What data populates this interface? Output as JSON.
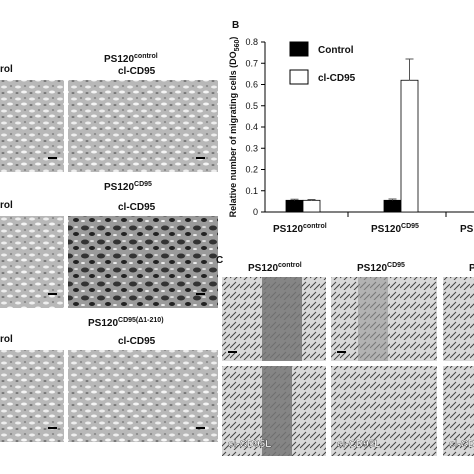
{
  "panel_a": {
    "rows": [
      {
        "left": "rol",
        "title": "PS120",
        "title_sup": "control",
        "right": "cl-CD95"
      },
      {
        "left": "rol",
        "title": "PS120",
        "title_sup": "CD95",
        "right": "cl-CD95"
      },
      {
        "left": "rol",
        "title": "PS120",
        "title_sup": "CD95(Δ1-210)",
        "right": "cl-CD95"
      }
    ]
  },
  "chart_data": {
    "type": "bar",
    "panel_label": "B",
    "ylabel": "Relative number of migrating cells (DO",
    "ylabel_sub": "560",
    "ylabel_end": ")",
    "categories": [
      "PS120",
      "PS120",
      "PS1"
    ],
    "category_sups": [
      "control",
      "CD95",
      null
    ],
    "series": [
      {
        "name": "Control",
        "color": "#000000",
        "values": [
          0.055,
          0.055,
          null
        ],
        "errors": [
          0.005,
          0.006,
          null
        ]
      },
      {
        "name": "cl-CD95",
        "color": "#ffffff",
        "values": [
          0.055,
          0.62,
          null
        ],
        "errors": [
          0.004,
          0.1,
          null
        ]
      }
    ],
    "ylim": [
      0,
      0.8
    ],
    "yticks": [
      0,
      0.1,
      0.2,
      0.3,
      0.4,
      0.5,
      0.6,
      0.7,
      0.8
    ]
  },
  "panel_c": {
    "label": "C",
    "columns": [
      {
        "title": "PS120",
        "title_sup": "control"
      },
      {
        "title": "PS120",
        "title_sup": "CD95"
      },
      {
        "title": "PS1",
        "title_sup": null
      }
    ],
    "bottom_labels": [
      "cl-CD95L",
      "cl-CD95L",
      "cl-CD"
    ]
  }
}
